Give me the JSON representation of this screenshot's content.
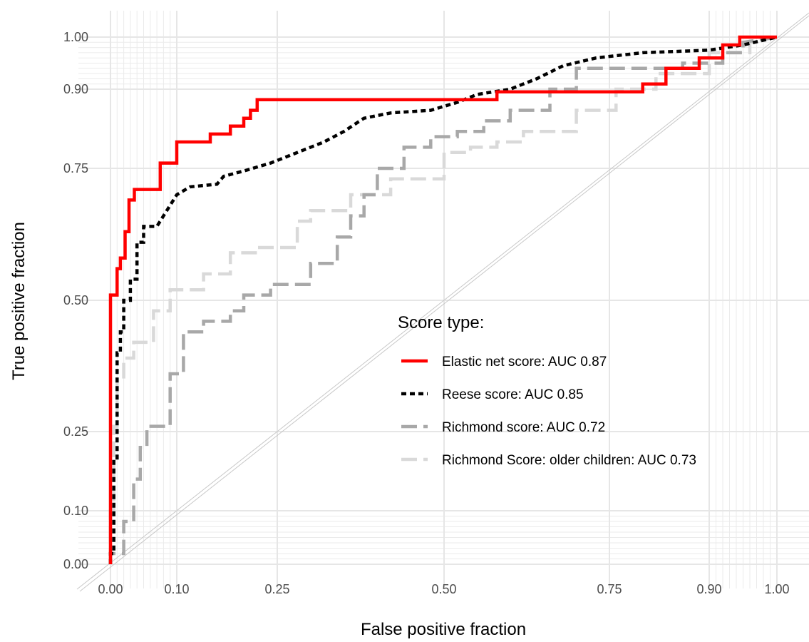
{
  "chart_data": {
    "type": "line",
    "xlabel": "False positive fraction",
    "ylabel": "True positive fraction",
    "xlim": [
      0,
      1
    ],
    "ylim": [
      0,
      1
    ],
    "x_ticks": [
      0.0,
      0.1,
      0.25,
      0.5,
      0.75,
      0.9,
      1.0
    ],
    "y_ticks": [
      0.0,
      0.1,
      0.25,
      0.5,
      0.75,
      0.9,
      1.0
    ],
    "x_tick_labels": [
      "0.00",
      "0.10",
      "0.25",
      "0.50",
      "0.75",
      "0.90",
      "1.00"
    ],
    "y_tick_labels": [
      "0.00",
      "0.10",
      "0.25",
      "0.50",
      "0.75",
      "0.90",
      "1.00"
    ],
    "scale": "style_roc (minor grid steps of 0.01 near 0 and 1)",
    "grid": true,
    "reference_line": "diagonal",
    "legend_title": "Score type:",
    "legend_position": "center-right",
    "series": [
      {
        "name": "Elastic net score: AUC 0.87",
        "color": "#ff0000",
        "dash": "solid",
        "points": [
          [
            0,
            0
          ],
          [
            0,
            0.1
          ],
          [
            0,
            0.3
          ],
          [
            0,
            0.51
          ],
          [
            0.01,
            0.51
          ],
          [
            0.01,
            0.56
          ],
          [
            0.015,
            0.56
          ],
          [
            0.015,
            0.58
          ],
          [
            0.022,
            0.58
          ],
          [
            0.022,
            0.63
          ],
          [
            0.028,
            0.63
          ],
          [
            0.028,
            0.69
          ],
          [
            0.036,
            0.69
          ],
          [
            0.036,
            0.71
          ],
          [
            0.075,
            0.71
          ],
          [
            0.075,
            0.76
          ],
          [
            0.1,
            0.76
          ],
          [
            0.1,
            0.8
          ],
          [
            0.15,
            0.8
          ],
          [
            0.15,
            0.815
          ],
          [
            0.18,
            0.815
          ],
          [
            0.18,
            0.83
          ],
          [
            0.2,
            0.83
          ],
          [
            0.2,
            0.845
          ],
          [
            0.21,
            0.845
          ],
          [
            0.21,
            0.86
          ],
          [
            0.22,
            0.86
          ],
          [
            0.22,
            0.88
          ],
          [
            0.58,
            0.88
          ],
          [
            0.58,
            0.895
          ],
          [
            0.8,
            0.895
          ],
          [
            0.8,
            0.91
          ],
          [
            0.835,
            0.91
          ],
          [
            0.835,
            0.94
          ],
          [
            0.885,
            0.94
          ],
          [
            0.885,
            0.96
          ],
          [
            0.92,
            0.96
          ],
          [
            0.92,
            0.985
          ],
          [
            0.945,
            0.985
          ],
          [
            0.945,
            1.0
          ],
          [
            1.0,
            1.0
          ]
        ]
      },
      {
        "name": "Reese score: AUC 0.85",
        "color": "#000000",
        "dash": "dashed",
        "points": [
          [
            0,
            0
          ],
          [
            0,
            0.02
          ],
          [
            0.005,
            0.02
          ],
          [
            0.005,
            0.2
          ],
          [
            0.01,
            0.2
          ],
          [
            0.01,
            0.4
          ],
          [
            0.015,
            0.4
          ],
          [
            0.015,
            0.44
          ],
          [
            0.02,
            0.44
          ],
          [
            0.02,
            0.5
          ],
          [
            0.03,
            0.5
          ],
          [
            0.03,
            0.54
          ],
          [
            0.04,
            0.54
          ],
          [
            0.04,
            0.61
          ],
          [
            0.05,
            0.61
          ],
          [
            0.05,
            0.64
          ],
          [
            0.07,
            0.64
          ],
          [
            0.08,
            0.66
          ],
          [
            0.09,
            0.68
          ],
          [
            0.1,
            0.7
          ],
          [
            0.12,
            0.715
          ],
          [
            0.16,
            0.72
          ],
          [
            0.17,
            0.735
          ],
          [
            0.2,
            0.745
          ],
          [
            0.24,
            0.76
          ],
          [
            0.28,
            0.78
          ],
          [
            0.32,
            0.8
          ],
          [
            0.35,
            0.82
          ],
          [
            0.38,
            0.845
          ],
          [
            0.42,
            0.855
          ],
          [
            0.48,
            0.86
          ],
          [
            0.52,
            0.875
          ],
          [
            0.55,
            0.89
          ],
          [
            0.6,
            0.9
          ],
          [
            0.64,
            0.92
          ],
          [
            0.68,
            0.945
          ],
          [
            0.73,
            0.96
          ],
          [
            0.8,
            0.97
          ],
          [
            0.9,
            0.975
          ],
          [
            0.95,
            0.985
          ],
          [
            1.0,
            1.0
          ]
        ]
      },
      {
        "name": "Richmond score: AUC 0.72",
        "color": "#a8a8a8",
        "dash": "longdash",
        "points": [
          [
            0,
            0
          ],
          [
            0,
            0.02
          ],
          [
            0.02,
            0.02
          ],
          [
            0.02,
            0.08
          ],
          [
            0.035,
            0.08
          ],
          [
            0.035,
            0.16
          ],
          [
            0.045,
            0.16
          ],
          [
            0.045,
            0.22
          ],
          [
            0.055,
            0.22
          ],
          [
            0.055,
            0.26
          ],
          [
            0.09,
            0.26
          ],
          [
            0.09,
            0.36
          ],
          [
            0.11,
            0.36
          ],
          [
            0.11,
            0.44
          ],
          [
            0.14,
            0.44
          ],
          [
            0.14,
            0.46
          ],
          [
            0.18,
            0.46
          ],
          [
            0.18,
            0.48
          ],
          [
            0.2,
            0.48
          ],
          [
            0.2,
            0.51
          ],
          [
            0.24,
            0.51
          ],
          [
            0.24,
            0.53
          ],
          [
            0.3,
            0.53
          ],
          [
            0.3,
            0.57
          ],
          [
            0.34,
            0.57
          ],
          [
            0.34,
            0.62
          ],
          [
            0.36,
            0.62
          ],
          [
            0.36,
            0.66
          ],
          [
            0.38,
            0.66
          ],
          [
            0.38,
            0.7
          ],
          [
            0.4,
            0.7
          ],
          [
            0.4,
            0.75
          ],
          [
            0.44,
            0.75
          ],
          [
            0.44,
            0.79
          ],
          [
            0.48,
            0.79
          ],
          [
            0.48,
            0.81
          ],
          [
            0.52,
            0.81
          ],
          [
            0.52,
            0.82
          ],
          [
            0.56,
            0.82
          ],
          [
            0.56,
            0.84
          ],
          [
            0.6,
            0.84
          ],
          [
            0.6,
            0.86
          ],
          [
            0.66,
            0.86
          ],
          [
            0.66,
            0.9
          ],
          [
            0.7,
            0.9
          ],
          [
            0.7,
            0.94
          ],
          [
            0.86,
            0.94
          ],
          [
            0.86,
            0.95
          ],
          [
            0.92,
            0.95
          ],
          [
            0.92,
            0.97
          ],
          [
            0.95,
            0.97
          ],
          [
            0.95,
            0.99
          ],
          [
            1.0,
            1.0
          ]
        ]
      },
      {
        "name": "Richmond Score: older children: AUC 0.73",
        "color": "#d9d9d9",
        "dash": "longdash",
        "points": [
          [
            0,
            0
          ],
          [
            0,
            0.1
          ],
          [
            0.005,
            0.1
          ],
          [
            0.005,
            0.26
          ],
          [
            0.01,
            0.26
          ],
          [
            0.01,
            0.35
          ],
          [
            0.02,
            0.35
          ],
          [
            0.02,
            0.39
          ],
          [
            0.035,
            0.39
          ],
          [
            0.035,
            0.42
          ],
          [
            0.065,
            0.42
          ],
          [
            0.065,
            0.48
          ],
          [
            0.09,
            0.48
          ],
          [
            0.09,
            0.52
          ],
          [
            0.14,
            0.52
          ],
          [
            0.14,
            0.55
          ],
          [
            0.18,
            0.55
          ],
          [
            0.18,
            0.59
          ],
          [
            0.22,
            0.59
          ],
          [
            0.22,
            0.6
          ],
          [
            0.28,
            0.6
          ],
          [
            0.28,
            0.65
          ],
          [
            0.3,
            0.65
          ],
          [
            0.3,
            0.67
          ],
          [
            0.36,
            0.67
          ],
          [
            0.36,
            0.7
          ],
          [
            0.42,
            0.7
          ],
          [
            0.42,
            0.73
          ],
          [
            0.5,
            0.73
          ],
          [
            0.5,
            0.78
          ],
          [
            0.54,
            0.78
          ],
          [
            0.54,
            0.79
          ],
          [
            0.58,
            0.79
          ],
          [
            0.58,
            0.8
          ],
          [
            0.62,
            0.8
          ],
          [
            0.62,
            0.82
          ],
          [
            0.7,
            0.82
          ],
          [
            0.7,
            0.86
          ],
          [
            0.76,
            0.86
          ],
          [
            0.76,
            0.9
          ],
          [
            0.82,
            0.9
          ],
          [
            0.82,
            0.93
          ],
          [
            0.9,
            0.93
          ],
          [
            0.9,
            0.97
          ],
          [
            0.96,
            0.97
          ],
          [
            0.96,
            0.99
          ],
          [
            1.0,
            1.0
          ]
        ]
      }
    ]
  }
}
